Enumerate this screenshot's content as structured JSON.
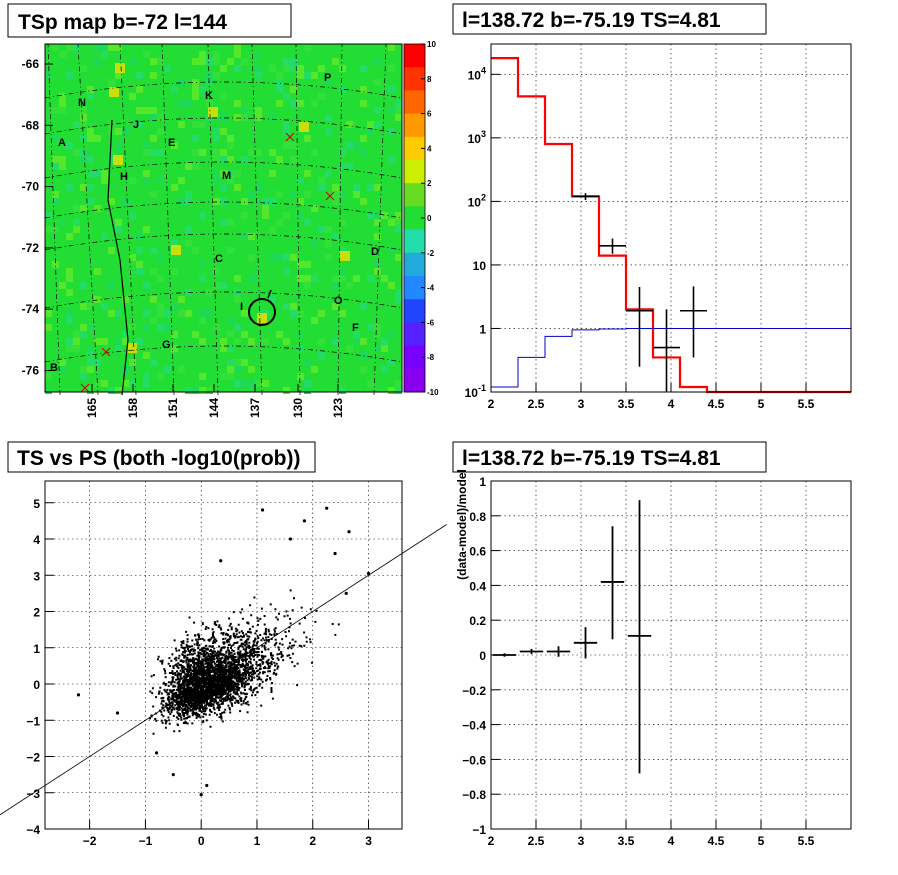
{
  "panels": {
    "map_title": "TSp map b=-72 l=144",
    "spectrum_title": "l=138.72 b=-75.19 TS=4.81",
    "scatter_title": "TS vs PS (both -log10(prob))",
    "ratio_title": "l=138.72 b=-75.19 TS=4.81"
  },
  "chart_data": [
    {
      "type": "heatmap",
      "title": "TSp map b=-72 l=144",
      "y_ticks": [
        "-66",
        "-68",
        "-70",
        "-72",
        "-74",
        "-76"
      ],
      "x_ticks": [
        "165",
        "158",
        "151",
        "144",
        "137",
        "130",
        "123"
      ],
      "colorbar_ticks": [
        "10",
        "8",
        "6",
        "4",
        "2",
        "0",
        "-2",
        "-4",
        "-6",
        "-8",
        "-10"
      ],
      "zlim": [
        -10,
        10
      ],
      "region_labels": [
        "P",
        "N",
        "K",
        "J",
        "A",
        "E",
        "H",
        "M",
        "D",
        "C",
        "I",
        "O",
        "F",
        "G",
        "B"
      ],
      "colors": {
        "background": "#22dd33",
        "hot": "#ffe000",
        "cool": "#22ddaa"
      }
    },
    {
      "type": "line",
      "title": "l=138.72 b=-75.19 TS=4.81",
      "ylog": true,
      "xlim": [
        2,
        6
      ],
      "ylim": [
        0.1,
        30000
      ],
      "x_ticks": [
        "2",
        "2.5",
        "3",
        "3.5",
        "4",
        "4.5",
        "5",
        "5.5"
      ],
      "y_ticks": [
        "10^{-1}",
        "1",
        "10",
        "10^{2}",
        "10^{3}",
        "10^{4}"
      ],
      "series": [
        {
          "kind": "step",
          "color": "#ff0000",
          "x_edges": [
            2,
            2.3,
            2.6,
            2.9,
            3.2,
            3.5,
            3.8,
            4.1,
            4.4,
            6
          ],
          "values": [
            18000,
            4500,
            800,
            120,
            14,
            2,
            0.35,
            0.12,
            0.1
          ]
        },
        {
          "kind": "step",
          "color": "#0000cc",
          "x_edges": [
            2,
            2.3,
            2.6,
            2.9,
            3.2,
            3.5,
            4.1,
            6
          ],
          "values": [
            0.12,
            0.35,
            0.75,
            0.95,
            0.98,
            1,
            1
          ]
        },
        {
          "kind": "errorbar",
          "color": "#000000",
          "points": [
            {
              "x": 3.05,
              "xerr": 0.15,
              "y": 120,
              "ylo": 105,
              "yhi": 135
            },
            {
              "x": 3.35,
              "xerr": 0.15,
              "y": 20,
              "ylo": 15,
              "yhi": 26
            },
            {
              "x": 3.65,
              "xerr": 0.15,
              "y": 1.9,
              "ylo": 0.25,
              "yhi": 4.5
            },
            {
              "x": 3.95,
              "xerr": 0.15,
              "y": 0.5,
              "ylo": 0.1,
              "yhi": 2.0
            },
            {
              "x": 4.25,
              "xerr": 0.15,
              "y": 1.9,
              "ylo": 0.35,
              "yhi": 4.6
            }
          ]
        }
      ]
    },
    {
      "type": "scatter",
      "title": "TS vs PS (both -log10(prob))",
      "xlim": [
        -2.8,
        3.6
      ],
      "ylim": [
        -4,
        5.6
      ],
      "x_ticks": [
        "-2",
        "-1",
        "0",
        "1",
        "2",
        "3"
      ],
      "y_ticks": [
        "-4",
        "-3",
        "-2",
        "-1",
        "0",
        "1",
        "2",
        "3",
        "4",
        "5"
      ],
      "reference_line": {
        "slope": 1,
        "intercept": 0
      },
      "points_note": "",
      "outlier_points": [
        [
          1.1,
          4.8
        ],
        [
          2.25,
          4.85
        ],
        [
          1.85,
          4.5
        ],
        [
          2.65,
          4.2
        ],
        [
          1.6,
          4.0
        ],
        [
          2.4,
          3.6
        ],
        [
          0.35,
          3.4
        ],
        [
          3.0,
          3.05
        ],
        [
          2.6,
          2.5
        ],
        [
          -2.2,
          -0.3
        ],
        [
          -1.5,
          -0.8
        ],
        [
          -0.8,
          -1.9
        ],
        [
          0,
          -3.05
        ],
        [
          0.1,
          -2.8
        ],
        [
          -0.5,
          -2.5
        ]
      ]
    },
    {
      "type": "scatter",
      "title": "l=138.72 b=-75.19 TS=4.81",
      "ylabel": "(data-model)/model",
      "xlim": [
        2,
        6
      ],
      "ylim": [
        -1,
        1
      ],
      "x_ticks": [
        "2",
        "2.5",
        "3",
        "3.5",
        "4",
        "4.5",
        "5",
        "5.5"
      ],
      "y_ticks": [
        "-1",
        "-0.8",
        "-0.6",
        "-0.4",
        "-0.2",
        "0",
        "0.2",
        "0.4",
        "0.6",
        "0.8",
        "1"
      ],
      "points": [
        {
          "x": 2.15,
          "xerr": 0.13,
          "y": 0.0,
          "ylo": -0.01,
          "yhi": 0.01
        },
        {
          "x": 2.45,
          "xerr": 0.13,
          "y": 0.02,
          "ylo": 0.005,
          "yhi": 0.035
        },
        {
          "x": 2.75,
          "xerr": 0.13,
          "y": 0.02,
          "ylo": -0.01,
          "yhi": 0.05
        },
        {
          "x": 3.05,
          "xerr": 0.13,
          "y": 0.07,
          "ylo": -0.02,
          "yhi": 0.16
        },
        {
          "x": 3.35,
          "xerr": 0.13,
          "y": 0.42,
          "ylo": 0.09,
          "yhi": 0.74
        },
        {
          "x": 3.65,
          "xerr": 0.13,
          "y": 0.11,
          "ylo": -0.68,
          "yhi": 0.89
        }
      ]
    }
  ]
}
